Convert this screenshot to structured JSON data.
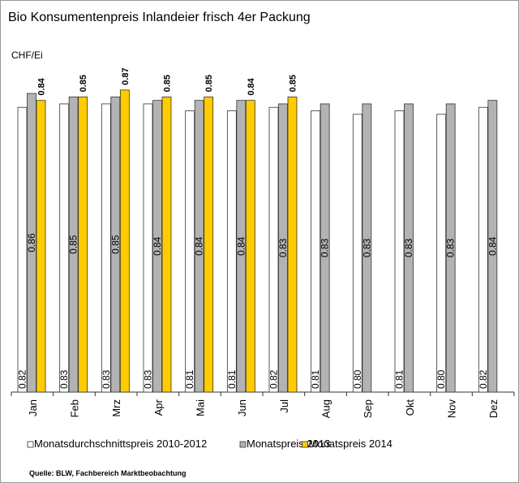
{
  "chart_data": {
    "type": "bar",
    "title": "Bio Konsumentenpreis Inlandeier frisch 4er Packung",
    "y_label": "CHF/Ei",
    "source": "Quelle: BLW, Fachbereich Marktbeobachtung",
    "categories": [
      "Jan",
      "Feb",
      "Mrz",
      "Apr",
      "Mai",
      "Jun",
      "Jul",
      "Aug",
      "Sep",
      "Okt",
      "Nov",
      "Dez"
    ],
    "ylim": [
      0,
      0.9
    ],
    "legend": "bottom",
    "series": [
      {
        "name": "Monatsdurchschnittspreis 2010-2012",
        "color": "#ffffff",
        "values": [
          0.82,
          0.83,
          0.83,
          0.83,
          0.81,
          0.81,
          0.82,
          0.81,
          0.8,
          0.81,
          0.8,
          0.82
        ],
        "value_labels": [
          "0.82",
          "0.83",
          "0.83",
          "0.83",
          "0.81",
          "0.81",
          "0.82",
          "0.81",
          "0.80",
          "0.81",
          "0.80",
          "0.82"
        ]
      },
      {
        "name": "Monatspreis 2013",
        "color": "#b3b3b3",
        "values": [
          0.86,
          0.85,
          0.85,
          0.84,
          0.84,
          0.84,
          0.83,
          0.83,
          0.83,
          0.83,
          0.83,
          0.84
        ],
        "value_labels": [
          "0.86",
          "0.85",
          "0.85",
          "0.84",
          "0.84",
          "0.84",
          "0.83",
          "0.83",
          "0.83",
          "0.83",
          "0.83",
          "0.84"
        ]
      },
      {
        "name": "Monatspreis 2014",
        "color": "#ffcc00",
        "values": [
          0.84,
          0.85,
          0.87,
          0.85,
          0.85,
          0.84,
          0.85,
          null,
          null,
          null,
          null,
          null
        ],
        "value_labels": [
          "0.84",
          "0.85",
          "0.87",
          "0.85",
          "0.85",
          "0.84",
          "0.85",
          null,
          null,
          null,
          null,
          null
        ]
      }
    ]
  }
}
